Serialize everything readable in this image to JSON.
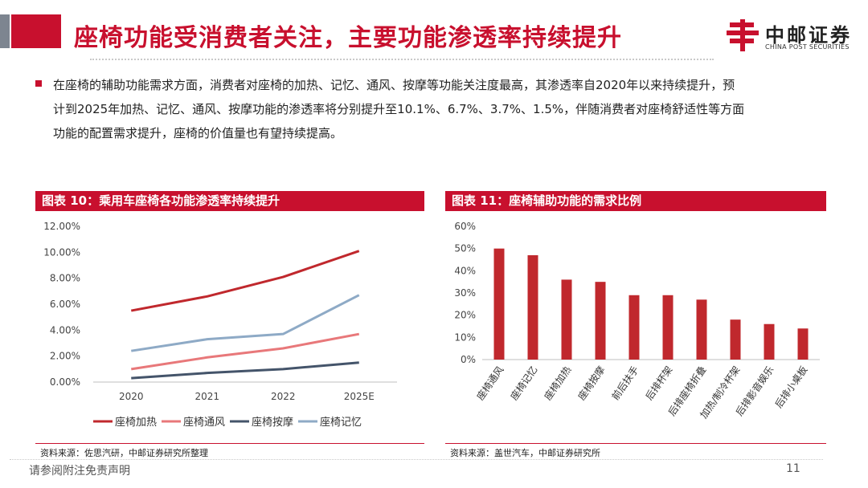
{
  "header": {
    "title": "座椅功能受消费者关注，主要功能渗透率持续提升",
    "logo_cn": "中邮证券",
    "logo_en": "CHINA POST SECURITIES"
  },
  "body": {
    "paragraph_lines": [
      "在座椅的辅助功能需求方面，消费者对座椅的加热、记忆、通风、按摩等功能关注度最高，其渗透率自2020年以来持续提升，预",
      "计到2025年加热、记忆、通风、按摩功能的渗透率将分别提升至10.1%、6.7%、3.7%、1.5%，伴随消费者对座椅舒适性等方面",
      "功能的配置需求提升，座椅的价值量也有望持续提高。"
    ]
  },
  "figure10": {
    "heading": "图表 10：乘用车座椅各功能渗透率持续提升",
    "source": "资料来源：佐思汽研，中邮证券研究所整理"
  },
  "figure11": {
    "heading": "图表 11：座椅辅助功能的需求比例",
    "source": "资料来源：盖世汽车，中邮证券研究所"
  },
  "footer": {
    "disclaimer": "请参阅附注免责声明",
    "page": "11"
  },
  "colors": {
    "brand_red": "#c8102e",
    "heating": "#c0282d",
    "ventilation": "#e8787a",
    "massage": "#44546a",
    "memory": "#8eaac6",
    "bar": "#c0282d"
  },
  "chart_data": [
    {
      "type": "line",
      "title": "图表 10：乘用车座椅各功能渗透率持续提升",
      "x": [
        "2020",
        "2021",
        "2022",
        "2025E"
      ],
      "yticks": [
        "0.00%",
        "2.00%",
        "4.00%",
        "6.00%",
        "8.00%",
        "10.00%",
        "12.00%"
      ],
      "ylim": [
        0,
        12
      ],
      "grid": false,
      "legend": "bottom",
      "series": [
        {
          "name": "座椅加热",
          "values": [
            5.5,
            6.6,
            8.1,
            10.1
          ],
          "color": "#c0282d"
        },
        {
          "name": "座椅通风",
          "values": [
            1.0,
            1.9,
            2.6,
            3.7
          ],
          "color": "#e8787a"
        },
        {
          "name": "座椅按摩",
          "values": [
            0.3,
            0.7,
            1.0,
            1.5
          ],
          "color": "#44546a"
        },
        {
          "name": "座椅记忆",
          "values": [
            2.4,
            3.3,
            3.7,
            6.7
          ],
          "color": "#8eaac6"
        }
      ]
    },
    {
      "type": "bar",
      "title": "图表 11：座椅辅助功能的需求比例",
      "categories": [
        "座椅通风",
        "座椅记忆",
        "座椅加热",
        "座椅按摩",
        "前后扶手",
        "后排杯架",
        "后排座椅折叠",
        "加热/制冷杯架",
        "后排影音娱乐",
        "后排小桌板"
      ],
      "values": [
        50,
        47,
        36,
        35,
        29,
        29,
        27,
        18,
        16,
        14
      ],
      "yticks": [
        "0%",
        "10%",
        "20%",
        "30%",
        "40%",
        "50%",
        "60%"
      ],
      "ylim": [
        0,
        60
      ],
      "grid": false
    }
  ]
}
